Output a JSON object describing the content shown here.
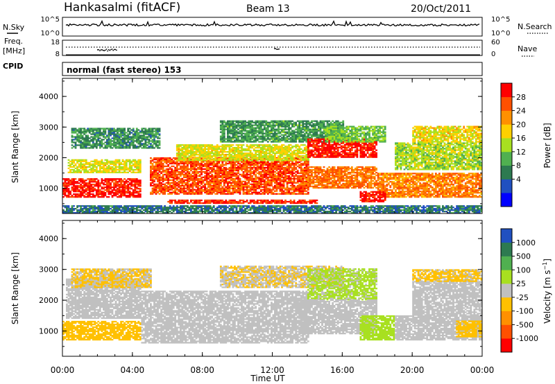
{
  "header": {
    "station": "Hankasalmi (fitACF)",
    "beam": "Beam 13",
    "date": "20/Oct/2011"
  },
  "panels": {
    "nsky_label": "N.Sky",
    "nsky_ticks": [
      "10^5",
      "10^0"
    ],
    "nsearch_label": "N.Search",
    "nsearch_ticks": [
      "10^5",
      "10^0"
    ],
    "freq_label_1": "Freq.",
    "freq_label_2": "[MHz]",
    "freq_ticks": [
      "18",
      "8"
    ],
    "nave_label": "Nave",
    "nave_ticks": [
      "60",
      "0"
    ],
    "cpid_label": "CPID",
    "cpid_text": "normal (fast stereo) 153"
  },
  "chart_data": [
    {
      "type": "heatmap",
      "title": "",
      "xlabel": "Time UT",
      "ylabel": "Slant Range [km]",
      "x_ticks": [
        "00:00",
        "04:00",
        "08:00",
        "12:00",
        "16:00",
        "20:00",
        "00:00"
      ],
      "xlim": [
        0,
        24
      ],
      "y_ticks": [
        "1000",
        "2000",
        "3000",
        "4000"
      ],
      "ylim": [
        180,
        4590
      ],
      "colorbar_label": "Power [dB]",
      "colorbar_ticks": [
        "28",
        "24",
        "20",
        "16",
        "12",
        "8",
        "4"
      ],
      "colorbar_range": [
        0,
        32
      ],
      "colors": [
        "#0000ff",
        "#2050c0",
        "#2d7a50",
        "#50b050",
        "#a8e020",
        "#ffd000",
        "#ff9000",
        "#ff5000",
        "#ff0000"
      ],
      "bands": [
        {
          "t0": 0,
          "t1": 4.5,
          "r0": 700,
          "r1": 1300,
          "v": 30
        },
        {
          "t0": 0.3,
          "t1": 4.5,
          "r0": 1500,
          "r1": 1950,
          "v": 18
        },
        {
          "t0": 0.5,
          "t1": 5.5,
          "r0": 2300,
          "r1": 2950,
          "v": 10
        },
        {
          "t0": 5,
          "t1": 14,
          "r0": 800,
          "r1": 2000,
          "v": 27
        },
        {
          "t0": 6.5,
          "t1": 14,
          "r0": 1900,
          "r1": 2400,
          "v": 18
        },
        {
          "t0": 9,
          "t1": 16,
          "r0": 2500,
          "r1": 3200,
          "v": 11
        },
        {
          "t0": 14,
          "t1": 18,
          "r0": 1000,
          "r1": 1700,
          "v": 25
        },
        {
          "t0": 14,
          "t1": 18,
          "r0": 2000,
          "r1": 2600,
          "v": 30
        },
        {
          "t0": 15,
          "t1": 18.5,
          "r0": 2500,
          "r1": 3000,
          "v": 14
        },
        {
          "t0": 18,
          "t1": 24,
          "r0": 700,
          "r1": 1500,
          "v": 24
        },
        {
          "t0": 19,
          "t1": 24,
          "r0": 1600,
          "r1": 2500,
          "v": 16
        },
        {
          "t0": 20,
          "t1": 24,
          "r0": 2500,
          "r1": 3000,
          "v": 19
        },
        {
          "t0": 6,
          "t1": 14.5,
          "r0": 500,
          "r1": 620,
          "v": 29
        },
        {
          "t0": 17,
          "t1": 18.5,
          "r0": 550,
          "r1": 900,
          "v": 30
        },
        {
          "t0": 0,
          "t1": 24,
          "r0": 180,
          "r1": 420,
          "v": 8
        }
      ]
    },
    {
      "type": "heatmap",
      "title": "",
      "xlabel": "Time UT",
      "ylabel": "Slant Range [km]",
      "x_ticks": [
        "00:00",
        "04:00",
        "08:00",
        "12:00",
        "16:00",
        "20:00",
        "00:00"
      ],
      "xlim": [
        0,
        24
      ],
      "y_ticks": [
        "1000",
        "2000",
        "3000",
        "4000"
      ],
      "ylim": [
        180,
        4590
      ],
      "colorbar_label": "Velocity [m s^-1]",
      "colorbar_ticks": [
        "1000",
        "500",
        "100",
        "25",
        "-25",
        "-100",
        "-500",
        "-1000"
      ],
      "colorbar_range": [
        -1250,
        1250
      ],
      "colors": [
        "#ff0000",
        "#ff5000",
        "#ff9000",
        "#ffc000",
        "#c0c0c0",
        "#a8e020",
        "#50b050",
        "#2d7a50",
        "#2050c0"
      ],
      "bands": [
        {
          "t0": 0,
          "t1": 4.5,
          "r0": 700,
          "r1": 1300,
          "v": -300
        },
        {
          "t0": 0.2,
          "t1": 4.5,
          "r0": 1400,
          "r1": 2700,
          "v": 0
        },
        {
          "t0": 0.5,
          "t1": 5,
          "r0": 2400,
          "r1": 3000,
          "v": -150
        },
        {
          "t0": 4.5,
          "t1": 14,
          "r0": 600,
          "r1": 2300,
          "v": 0
        },
        {
          "t0": 9,
          "t1": 16,
          "r0": 2400,
          "r1": 3100,
          "v": -120
        },
        {
          "t0": 14,
          "t1": 18,
          "r0": 2000,
          "r1": 3000,
          "v": 200
        },
        {
          "t0": 13.5,
          "t1": 18,
          "r0": 900,
          "r1": 2000,
          "v": 0
        },
        {
          "t0": 17,
          "t1": 19,
          "r0": 700,
          "r1": 1500,
          "v": 300
        },
        {
          "t0": 19,
          "t1": 24,
          "r0": 700,
          "r1": 1500,
          "v": 0
        },
        {
          "t0": 20,
          "t1": 24,
          "r0": 1500,
          "r1": 2600,
          "v": 0
        },
        {
          "t0": 20,
          "t1": 24,
          "r0": 2600,
          "r1": 3000,
          "v": -200
        },
        {
          "t0": 22.5,
          "t1": 24,
          "r0": 800,
          "r1": 1300,
          "v": -300
        }
      ]
    }
  ]
}
